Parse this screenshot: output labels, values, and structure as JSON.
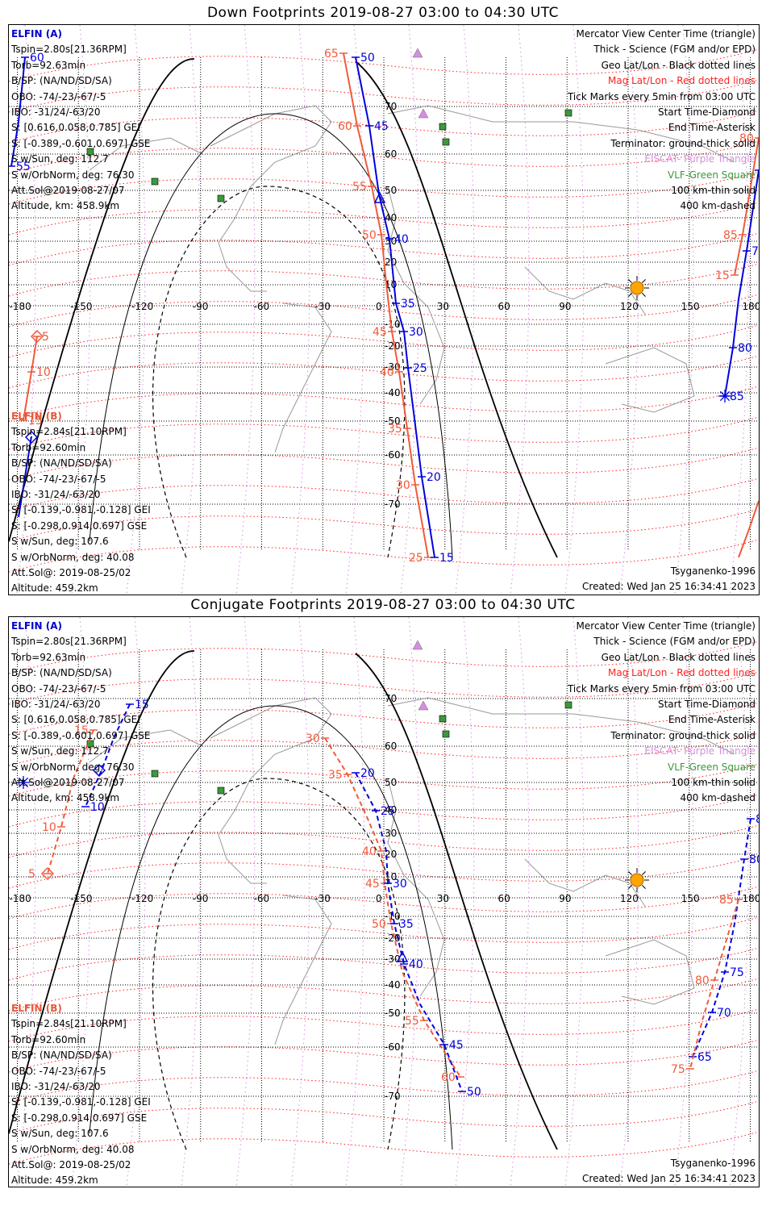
{
  "panels": [
    {
      "title": "Down Footprints 2019-08-27 03:00 to 04:30 UTC",
      "elfin_a": {
        "name": "ELFIN (A)",
        "lines": [
          "Tspin=2.80s[21.36RPM]",
          "Torb=92.63min",
          "B/SP: (NA/ND/SD/SA)",
          "OBO: -74/-23/-67/-5",
          "IBO: -31/24/-63/20",
          "S: [0.616,0.058,0.785] GEI",
          "S: [-0.389,-0.601,0.697] GSE",
          "S w/Sun, deg: 112.7",
          "S w/OrbNorm, deg: 76.30",
          "Att.Sol@2019-08-27/07",
          "Altitude, km: 458.9km"
        ]
      },
      "elfin_b": {
        "name": "ELFIN (B)",
        "lines": [
          "Tspin=2.84s[21.10RPM]",
          "Torb=92.60min",
          "B/SP: (NA/ND/SD/SA)",
          "OBO: -74/-23/-67/-5",
          "IBO: -31/24/-63/20",
          "S: [-0.139,-0.981,-0.128] GEI",
          "S: [-0.298,0.914,0.697] GSE",
          "S w/Sun, deg: 107.6",
          "S w/OrbNorm, deg: 40.08",
          "Att.Sol@: 2019-08-25/02",
          "Altitude: 459.2km"
        ]
      },
      "a_ticks": [
        "50",
        "45",
        "40",
        "35",
        "30",
        "25",
        "20",
        "15"
      ],
      "b_ticks": [
        "65",
        "60",
        "55",
        "50",
        "45",
        "40",
        "35",
        "30",
        "25"
      ],
      "a_ticks_right": [
        "70",
        "75",
        "80",
        "85"
      ],
      "b_ticks_right": [
        "80",
        "85",
        "15"
      ],
      "a_ticks_left": [
        "60",
        "55"
      ],
      "b_ticks_left": [
        "5",
        "10",
        "15"
      ]
    },
    {
      "title": "Conjugate Footprints 2019-08-27 03:00 to 04:30 UTC",
      "elfin_a": {
        "name": "ELFIN (A)",
        "lines": [
          "Tspin=2.80s[21.36RPM]",
          "Torb=92.63min",
          "B/SP: (NA/ND/SD/SA)",
          "OBO: -74/-23/-67/-5",
          "IBO: -31/24/-63/20",
          "S: [0.616,0.058,0.785] GEI",
          "S: [-0.389,-0.601,0.697] GSE",
          "S w/Sun, deg: 112.7",
          "S w/OrbNorm, deg: 76.30",
          "Att.Sol@2019-08-27/07",
          "Altitude, km: 458.9km"
        ]
      },
      "elfin_b": {
        "name": "ELFIN (B)",
        "lines": [
          "Tspin=2.84s[21.10RPM]",
          "Torb=92.60min",
          "B/SP: (NA/ND/SD/SA)",
          "OBO: -74/-23/-67/-5",
          "IBO: -31/24/-63/20",
          "S: [-0.139,-0.981,-0.128] GEI",
          "S: [-0.298,0.914,0.697] GSE",
          "S w/Sun, deg: 107.6",
          "S w/OrbNorm, deg: 40.08",
          "Att.Sol@: 2019-08-25/02",
          "Altitude: 459.2km"
        ]
      },
      "a_ticks": [
        "20",
        "25",
        "30",
        "35",
        "40",
        "45",
        "50"
      ],
      "b_ticks": [
        "30",
        "35",
        "40",
        "45",
        "50",
        "55",
        "60"
      ],
      "a_ticks_right": [
        "85",
        "80",
        "75",
        "70",
        "65"
      ],
      "b_ticks_right": [
        "85",
        "80",
        "75"
      ],
      "a_ticks_left": [
        "15",
        "10"
      ],
      "b_ticks_left": [
        "15",
        "10",
        "5"
      ]
    }
  ],
  "legend": {
    "line1": "Mercator View Center Time (triangle)",
    "line2": "Thick - Science (FGM and/or EPD)",
    "line3": "Geo Lat/Lon - Black dotted lines",
    "line4": "Mag Lat/Lon - Red dotted lines",
    "line5": "Tick Marks every 5min from 03:00 UTC",
    "line6": "Start Time-Diamond",
    "line7": "End Time-Asterisk",
    "line8": "Terminator: ground-thick solid",
    "line9": "EISCAT- Purple Triangle",
    "line10": "VLF-Green Square",
    "line11": "100 km-thin solid",
    "line12": "400 km-dashed"
  },
  "model": "Tsyganenko-1996",
  "created": "Created: Wed Jan 25 16:34:41 2023",
  "axes": {
    "lon_ticks": [
      "-180",
      "-150",
      "-120",
      "-90",
      "-60",
      "-30",
      "0",
      "30",
      "60",
      "90",
      "120",
      "150",
      "180"
    ],
    "lat_ticks": [
      "70",
      "60",
      "50",
      "40",
      "30",
      "20",
      "10",
      "-10",
      "-20",
      "-30",
      "-40",
      "-50",
      "-60",
      "-70"
    ]
  },
  "colors": {
    "elfin_a": "#0000dd",
    "elfin_b": "#f05a3a",
    "mag_grid": "#ff2020",
    "geo_grid": "#000000",
    "eiscat": "#d58ee0",
    "vlf": "#3a9a3a",
    "sun": "#ffa500"
  }
}
